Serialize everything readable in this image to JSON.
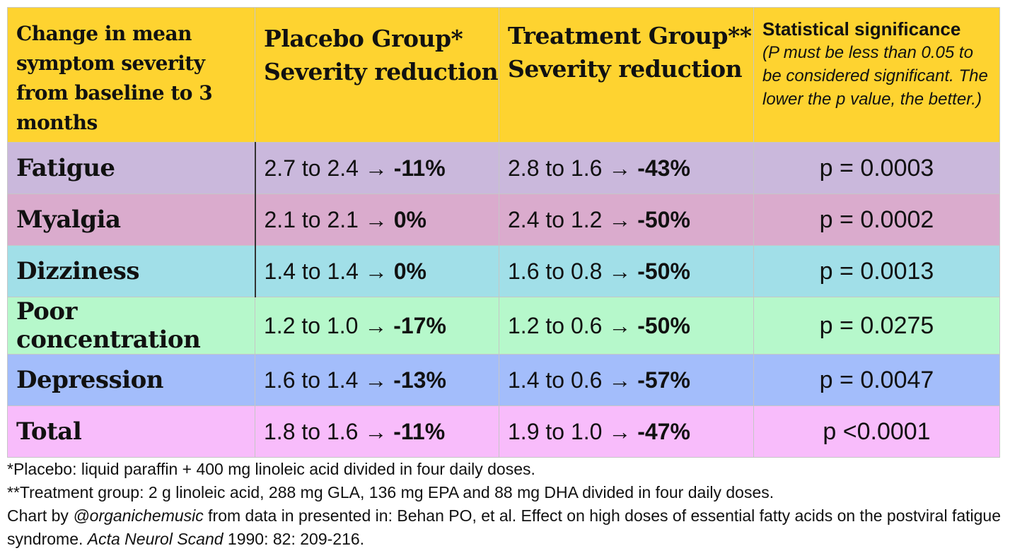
{
  "chart_data": {
    "type": "table",
    "colors": {
      "header": "#fed330",
      "fatigue": "#cab8dc",
      "myalgia": "#daabcd",
      "dizziness": "#a1dfe8",
      "poor_concentration": "#b6f8cb",
      "depression": "#a3bdfb",
      "total": "#f8bcfb"
    },
    "headers": {
      "col1": "Change in mean symptom severity from baseline to 3 months",
      "col2_line1": "Placebo Group*",
      "col2_line2": "Severity reduction",
      "col3_line1": "Treatment Group**",
      "col3_line2": "Severity reduction",
      "col4_title": "Statistical significance",
      "col4_note": "(P must be less than 0.05 to be considered significant. The lower the p value, the better.)"
    },
    "rows": [
      {
        "symptom": "Fatigue",
        "placebo_range": "2.7 to 2.4 → ",
        "placebo_change": "-11%",
        "treatment_range": "2.8 to 1.6 → ",
        "treatment_change": "-43%",
        "p": "p = 0.0003"
      },
      {
        "symptom": "Myalgia",
        "placebo_range": "2.1 to 2.1 → ",
        "placebo_change": "0%",
        "treatment_range": "2.4 to 1.2 → ",
        "treatment_change": "-50%",
        "p": "p = 0.0002"
      },
      {
        "symptom": "Dizziness",
        "placebo_range": "1.4 to 1.4 → ",
        "placebo_change": "0%",
        "treatment_range": "1.6 to 0.8 → ",
        "treatment_change": "-50%",
        "p": "p = 0.0013"
      },
      {
        "symptom": "Poor concentration",
        "placebo_range": "1.2 to 1.0 → ",
        "placebo_change": "-17%",
        "treatment_range": "1.2 to 0.6 → ",
        "treatment_change": "-50%",
        "p": "p = 0.0275"
      },
      {
        "symptom": "Depression",
        "placebo_range": "1.6 to 1.4 → ",
        "placebo_change": "-13%",
        "treatment_range": "1.4 to 0.6 → ",
        "treatment_change": "-57%",
        "p": "p = 0.0047"
      },
      {
        "symptom": "Total",
        "placebo_range": "1.8 to 1.6 → ",
        "placebo_change": "-11%",
        "treatment_range": "1.9 to 1.0 → ",
        "treatment_change": "-47%",
        "p": "p <0.0001"
      }
    ]
  },
  "footnotes": {
    "placebo": "*Placebo: liquid paraffin + 400 mg linoleic acid divided in four daily doses.",
    "treatment": "**Treatment group: 2 g linoleic acid, 288 mg GLA, 136 mg EPA and 88 mg DHA divided in four daily doses.",
    "credit_prefix": "Chart by ",
    "credit_handle": "@organichemusic",
    "credit_middle": " from data in presented in: Behan PO, et al. Effect on high doses of essential fatty acids on the postviral fatigue syndrome. ",
    "journal": "Acta Neurol Scand",
    "citation_end": " 1990: 82: 209-216."
  }
}
